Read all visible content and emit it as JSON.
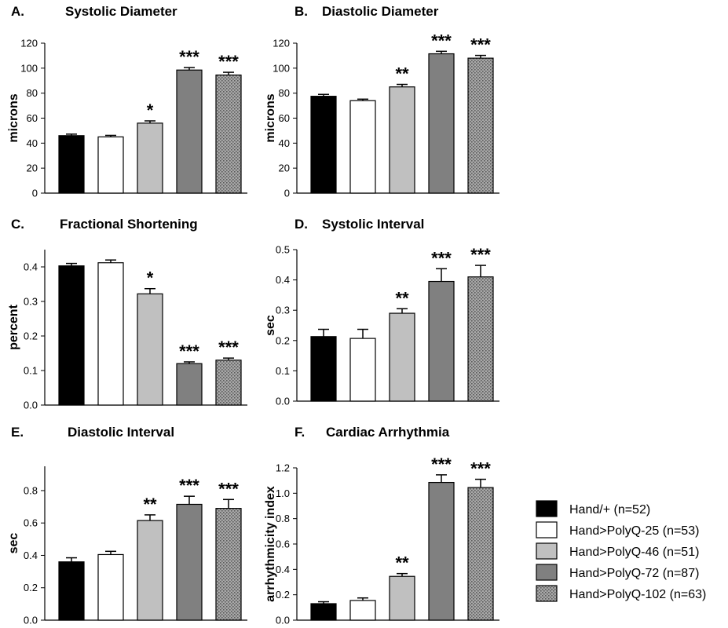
{
  "legend": [
    {
      "label": "Hand/+ (n=52)",
      "fill": "black"
    },
    {
      "label": "Hand>PolyQ-25 (n=53)",
      "fill": "white"
    },
    {
      "label": "Hand>PolyQ-46 (n=51)",
      "fill": "light-gray"
    },
    {
      "label": "Hand>PolyQ-72 (n=87)",
      "fill": "dark-gray"
    },
    {
      "label": "Hand>PolyQ-102 (n=63)",
      "fill": "dotted-gray"
    }
  ],
  "colors": {
    "black": "#000000",
    "white": "#ffffff",
    "light_gray": "#c0c0c0",
    "dark_gray": "#808080",
    "dotted_gray": "#9a9a9a"
  },
  "chart_data": [
    {
      "type": "bar",
      "letter": "A.",
      "title": "Systolic Diameter",
      "ylabel": "microns",
      "ylim": [
        0,
        120
      ],
      "yticks": [
        "0",
        "20",
        "40",
        "60",
        "80",
        "100",
        "120"
      ],
      "ytick_values": [
        0,
        20,
        40,
        60,
        80,
        100,
        120
      ],
      "categories": [
        "Hand/+",
        "Hand>PolyQ-25",
        "Hand>PolyQ-46",
        "Hand>PolyQ-72",
        "Hand>PolyQ-102"
      ],
      "values": [
        46,
        45,
        56,
        98.5,
        94.5
      ],
      "errors": [
        1.2,
        1.2,
        1.8,
        2.0,
        2.2
      ],
      "significance": [
        "",
        "",
        "*",
        "***",
        "***"
      ]
    },
    {
      "type": "bar",
      "letter": "B.",
      "title": "Diastolic Diameter",
      "ylabel": "microns",
      "ylim": [
        0,
        120
      ],
      "yticks": [
        "0",
        "20",
        "40",
        "60",
        "80",
        "100",
        "120"
      ],
      "ytick_values": [
        0,
        20,
        40,
        60,
        80,
        100,
        120
      ],
      "categories": [
        "Hand/+",
        "Hand>PolyQ-25",
        "Hand>PolyQ-46",
        "Hand>PolyQ-72",
        "Hand>PolyQ-102"
      ],
      "values": [
        77.5,
        74,
        85,
        111.5,
        108
      ],
      "errors": [
        1.5,
        1.2,
        2.0,
        2.0,
        2.2
      ],
      "significance": [
        "",
        "",
        "**",
        "***",
        "***"
      ]
    },
    {
      "type": "bar",
      "letter": "C.",
      "title": "Fractional Shortening",
      "ylabel": "percent",
      "ylim": [
        0,
        0.45
      ],
      "yticks": [
        "0.0",
        "0.1",
        "0.2",
        "0.3",
        "0.4"
      ],
      "ytick_values": [
        0,
        0.1,
        0.2,
        0.3,
        0.4
      ],
      "categories": [
        "Hand/+",
        "Hand>PolyQ-25",
        "Hand>PolyQ-46",
        "Hand>PolyQ-72",
        "Hand>PolyQ-102"
      ],
      "values": [
        0.403,
        0.412,
        0.322,
        0.12,
        0.13
      ],
      "errors": [
        0.007,
        0.008,
        0.015,
        0.005,
        0.006
      ],
      "significance": [
        "",
        "",
        "*",
        "***",
        "***"
      ]
    },
    {
      "type": "bar",
      "letter": "D.",
      "title": "Systolic Interval",
      "ylabel": "sec",
      "ylim": [
        0,
        0.5
      ],
      "yticks": [
        "0.0",
        "0.1",
        "0.2",
        "0.3",
        "0.4",
        "0.5"
      ],
      "ytick_values": [
        0,
        0.1,
        0.2,
        0.3,
        0.4,
        0.5
      ],
      "categories": [
        "Hand/+",
        "Hand>PolyQ-25",
        "Hand>PolyQ-46",
        "Hand>PolyQ-72",
        "Hand>PolyQ-102"
      ],
      "values": [
        0.213,
        0.207,
        0.29,
        0.395,
        0.41
      ],
      "errors": [
        0.024,
        0.03,
        0.015,
        0.042,
        0.038
      ],
      "significance": [
        "",
        "",
        "**",
        "***",
        "***"
      ]
    },
    {
      "type": "bar",
      "letter": "E.",
      "title": "Diastolic Interval",
      "ylabel": "sec",
      "ylim": [
        0,
        0.95
      ],
      "yticks": [
        "0.0",
        "0.2",
        "0.4",
        "0.6",
        "0.8"
      ],
      "ytick_values": [
        0,
        0.2,
        0.4,
        0.6,
        0.8
      ],
      "categories": [
        "Hand/+",
        "Hand>PolyQ-25",
        "Hand>PolyQ-46",
        "Hand>PolyQ-72",
        "Hand>PolyQ-102"
      ],
      "values": [
        0.36,
        0.405,
        0.615,
        0.715,
        0.69
      ],
      "errors": [
        0.025,
        0.02,
        0.035,
        0.05,
        0.055
      ],
      "significance": [
        "",
        "",
        "**",
        "***",
        "***"
      ]
    },
    {
      "type": "bar",
      "letter": "F.",
      "title": "Cardiac Arrhythmia",
      "ylabel": "arrhythmicity index",
      "ylim": [
        0,
        1.2
      ],
      "yticks": [
        "0.0",
        "0.2",
        "0.4",
        "0.6",
        "0.8",
        "1.0",
        "1.2"
      ],
      "ytick_values": [
        0,
        0.2,
        0.4,
        0.6,
        0.8,
        1.0,
        1.2
      ],
      "categories": [
        "Hand/+",
        "Hand>PolyQ-25",
        "Hand>PolyQ-46",
        "Hand>PolyQ-72",
        "Hand>PolyQ-102"
      ],
      "values": [
        0.13,
        0.155,
        0.345,
        1.085,
        1.045
      ],
      "errors": [
        0.015,
        0.02,
        0.022,
        0.06,
        0.065
      ],
      "significance": [
        "",
        "",
        "**",
        "***",
        "***"
      ]
    }
  ]
}
